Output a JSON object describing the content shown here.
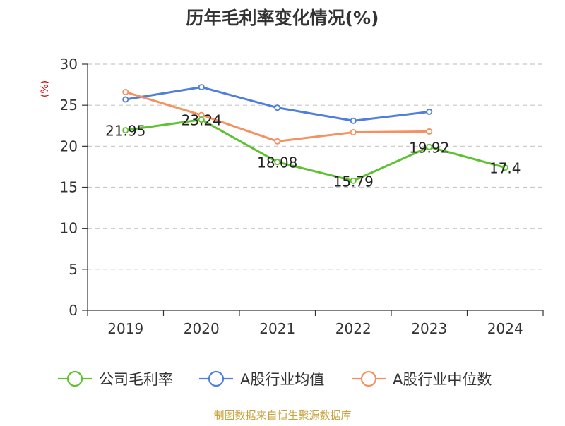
{
  "chart_data": {
    "type": "line",
    "title": "历年毛利率变化情况(%)",
    "ylabel": "(%)",
    "xlabel": "",
    "categories": [
      "2019",
      "2020",
      "2021",
      "2022",
      "2023",
      "2024"
    ],
    "ylim": [
      0,
      30
    ],
    "yticks": [
      0,
      5,
      10,
      15,
      20,
      25,
      30
    ],
    "grid": true,
    "legend_position": "bottom",
    "series": [
      {
        "name": "公司毛利率",
        "color": "#5ec12f",
        "values": [
          21.95,
          23.24,
          18.08,
          15.79,
          19.92,
          17.4
        ],
        "labels": [
          "21.95",
          "23.24",
          "18.08",
          "15.79",
          "19.92",
          "17.4"
        ],
        "show_labels": true
      },
      {
        "name": "A股行业均值",
        "color": "#4f7fdb",
        "values": [
          25.7,
          27.2,
          24.7,
          23.1,
          24.2,
          null
        ],
        "show_labels": false
      },
      {
        "name": "A股行业中位数",
        "color": "#f59160",
        "values": [
          26.6,
          23.8,
          20.6,
          21.7,
          21.8,
          null
        ],
        "show_labels": false
      }
    ]
  },
  "source": "制图数据来自恒生聚源数据库",
  "colors": {
    "title": "#333333",
    "axis": "#333333",
    "tick_label": "#333333",
    "ylabel": "#cc0000",
    "grid": "#c8c8c8",
    "source": "#c8a23c"
  }
}
